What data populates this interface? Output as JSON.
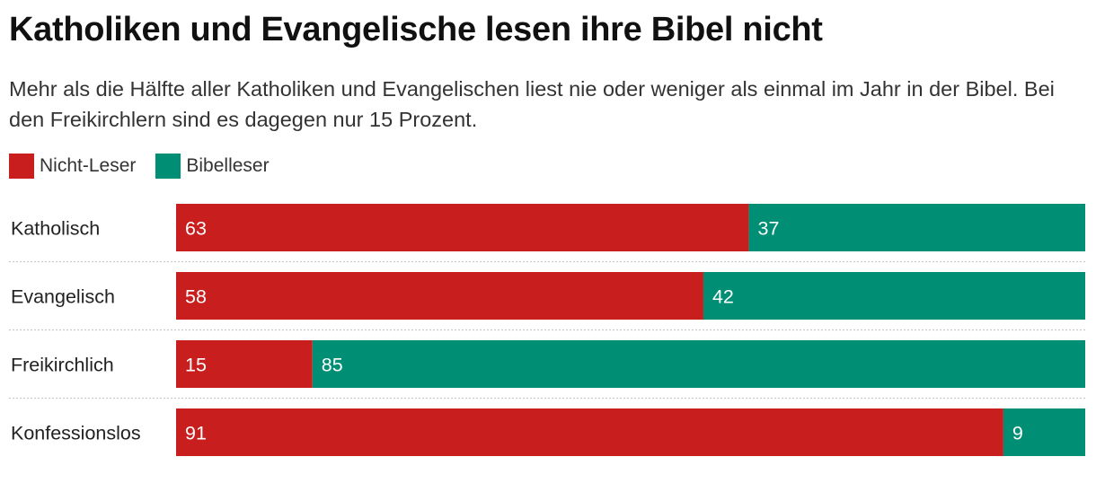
{
  "chart_data": {
    "type": "bar",
    "orientation": "horizontal",
    "stacked": true,
    "title": "Katholiken und Evangelische lesen ihre Bibel nicht",
    "subtitle": "Mehr als die Hälfte aller Katholiken und Evangelischen liest nie oder weniger als einmal im Jahr in der Bibel. Bei den Freikirchlern sind es dagegen nur 15 Prozent.",
    "categories": [
      "Katholisch",
      "Evangelisch",
      "Freikirchlich",
      "Konfessionslos"
    ],
    "series": [
      {
        "name": "Nicht-Leser",
        "color": "#c81e1e",
        "values": [
          63,
          58,
          15,
          91
        ]
      },
      {
        "name": "Bibelleser",
        "color": "#008f74",
        "values": [
          37,
          42,
          85,
          9
        ]
      }
    ],
    "xlim": [
      0,
      100
    ],
    "legend_position": "top-left",
    "grid": false
  }
}
